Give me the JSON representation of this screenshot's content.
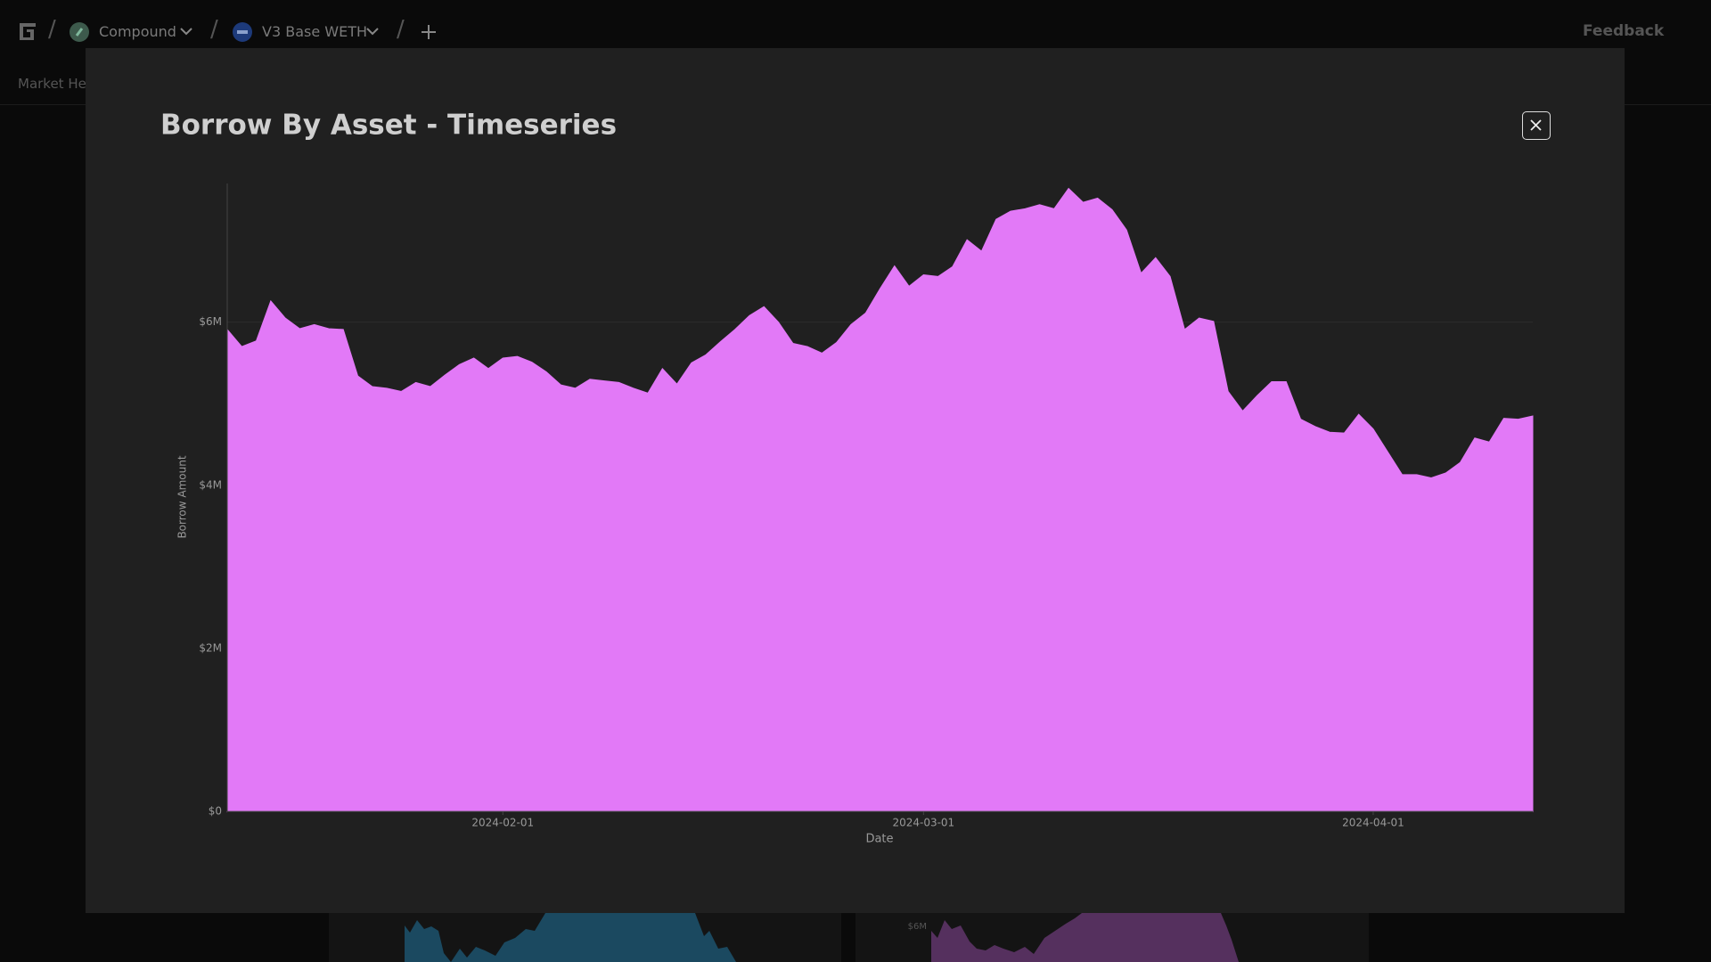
{
  "nav": {
    "protocol": "Compound",
    "market": "V3 Base WETH",
    "feedback": "Feedback",
    "tab": "Market Health"
  },
  "background": {
    "label": "$6M"
  },
  "chart_data": {
    "type": "area",
    "title": "Borrow By Asset - Timeseries",
    "x_label": "Date",
    "y_label": "Borrow Amount",
    "color": "#e279f7",
    "x": [
      "2024-01-13",
      "2024-01-14",
      "2024-01-15",
      "2024-01-16",
      "2024-01-17",
      "2024-01-18",
      "2024-01-19",
      "2024-01-20",
      "2024-01-21",
      "2024-01-22",
      "2024-01-23",
      "2024-01-24",
      "2024-01-25",
      "2024-01-26",
      "2024-01-27",
      "2024-01-28",
      "2024-01-29",
      "2024-01-30",
      "2024-01-31",
      "2024-02-01",
      "2024-02-02",
      "2024-02-03",
      "2024-02-04",
      "2024-02-05",
      "2024-02-06",
      "2024-02-07",
      "2024-02-08",
      "2024-02-09",
      "2024-02-10",
      "2024-02-11",
      "2024-02-12",
      "2024-02-13",
      "2024-02-14",
      "2024-02-15",
      "2024-02-16",
      "2024-02-17",
      "2024-02-18",
      "2024-02-19",
      "2024-02-20",
      "2024-02-21",
      "2024-02-22",
      "2024-02-23",
      "2024-02-24",
      "2024-02-25",
      "2024-02-26",
      "2024-02-27",
      "2024-02-28",
      "2024-02-29",
      "2024-03-01",
      "2024-03-02",
      "2024-03-03",
      "2024-03-04",
      "2024-03-05",
      "2024-03-06",
      "2024-03-07",
      "2024-03-08",
      "2024-03-09",
      "2024-03-10",
      "2024-03-11",
      "2024-03-12",
      "2024-03-13",
      "2024-03-14",
      "2024-03-15",
      "2024-03-16",
      "2024-03-17",
      "2024-03-18",
      "2024-03-19",
      "2024-03-20",
      "2024-03-21",
      "2024-03-22",
      "2024-03-23",
      "2024-03-24",
      "2024-03-25",
      "2024-03-26",
      "2024-03-27",
      "2024-03-28",
      "2024-03-29",
      "2024-03-30",
      "2024-03-31",
      "2024-04-01",
      "2024-04-02",
      "2024-04-03",
      "2024-04-04",
      "2024-04-05",
      "2024-04-06",
      "2024-04-07",
      "2024-04-08",
      "2024-04-09",
      "2024-04-10",
      "2024-04-11",
      "2024-04-12"
    ],
    "values": [
      5910000,
      5700000,
      5770000,
      6260000,
      6050000,
      5920000,
      5970000,
      5920000,
      5910000,
      5340000,
      5210000,
      5190000,
      5150000,
      5260000,
      5210000,
      5350000,
      5480000,
      5560000,
      5430000,
      5560000,
      5580000,
      5510000,
      5390000,
      5230000,
      5190000,
      5300000,
      5280000,
      5260000,
      5190000,
      5130000,
      5430000,
      5240000,
      5500000,
      5600000,
      5760000,
      5910000,
      6080000,
      6190000,
      6000000,
      5740000,
      5700000,
      5620000,
      5750000,
      5970000,
      6110000,
      6410000,
      6690000,
      6440000,
      6580000,
      6560000,
      6680000,
      7010000,
      6870000,
      7260000,
      7360000,
      7390000,
      7440000,
      7390000,
      7640000,
      7470000,
      7520000,
      7380000,
      7130000,
      6600000,
      6790000,
      6560000,
      5910000,
      6050000,
      6010000,
      5150000,
      4910000,
      5100000,
      5270000,
      5270000,
      4810000,
      4720000,
      4650000,
      4640000,
      4870000,
      4690000,
      4410000,
      4130000,
      4130000,
      4090000,
      4150000,
      4280000,
      4580000,
      4530000,
      4820000,
      4810000,
      4850000
    ],
    "xlim": [
      "2024-01-13",
      "2024-04-12"
    ],
    "xticks": [
      "2024-02-01",
      "2024-03-01",
      "2024-04-01"
    ],
    "ylim": [
      0,
      7700000
    ],
    "yticks": [
      {
        "value": 0,
        "label": "$0"
      },
      {
        "value": 2000000,
        "label": "$2M"
      },
      {
        "value": 4000000,
        "label": "$4M"
      },
      {
        "value": 6000000,
        "label": "$6M"
      }
    ],
    "grid": true
  }
}
